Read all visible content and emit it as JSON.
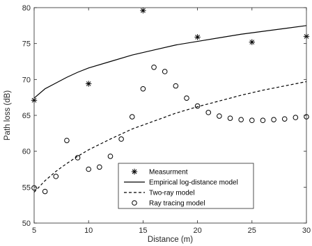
{
  "chart_data": {
    "type": "scatter",
    "xlabel": "Distance (m)",
    "ylabel": "Path loss (dB)",
    "xlim": [
      5,
      30
    ],
    "ylim": [
      50,
      80
    ],
    "xticks": [
      5,
      10,
      15,
      20,
      25,
      30
    ],
    "yticks": [
      50,
      55,
      60,
      65,
      70,
      75,
      80
    ],
    "grid": false,
    "legend_position": "lower-center",
    "series": [
      {
        "name": "Measurment",
        "style": "asterisk",
        "x": [
          5,
          10,
          15,
          20,
          25,
          30
        ],
        "y": [
          67.1,
          69.4,
          79.6,
          75.9,
          75.2,
          76.0
        ]
      },
      {
        "name": "Empirical log-distance model",
        "style": "solid-line",
        "x": [
          5,
          6,
          7,
          8,
          9,
          10,
          12,
          14,
          16,
          18,
          20,
          22,
          24,
          26,
          28,
          30
        ],
        "y": [
          67.4,
          68.7,
          69.5,
          70.3,
          71.0,
          71.6,
          72.5,
          73.4,
          74.1,
          74.8,
          75.3,
          75.8,
          76.3,
          76.7,
          77.1,
          77.5
        ]
      },
      {
        "name": "Two-ray model",
        "style": "dashed-line",
        "x": [
          5,
          6,
          7,
          8,
          9,
          10,
          12,
          14,
          16,
          18,
          20,
          22,
          24,
          26,
          28,
          30
        ],
        "y": [
          54.3,
          55.9,
          57.2,
          58.3,
          59.3,
          60.2,
          61.7,
          63.1,
          64.2,
          65.3,
          66.2,
          67.0,
          67.8,
          68.5,
          69.1,
          69.7
        ]
      },
      {
        "name": "Ray tracing model",
        "style": "circle",
        "x": [
          5,
          6,
          7,
          8,
          9,
          10,
          11,
          12,
          13,
          14,
          15,
          16,
          17,
          18,
          19,
          20,
          21,
          22,
          23,
          24,
          25,
          26,
          27,
          28,
          29,
          30
        ],
        "y": [
          54.9,
          54.4,
          56.5,
          61.5,
          59.1,
          57.5,
          57.8,
          59.3,
          61.7,
          64.8,
          68.7,
          71.7,
          71.1,
          69.1,
          67.4,
          66.3,
          65.4,
          64.9,
          64.6,
          64.4,
          64.3,
          64.3,
          64.4,
          64.5,
          64.7,
          64.8
        ]
      }
    ]
  }
}
